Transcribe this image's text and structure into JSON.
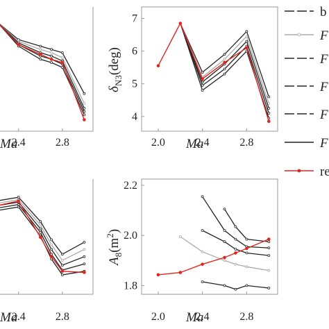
{
  "chart_data": [
    {
      "type": "line",
      "panel": "top-left",
      "xlabel": "Ma",
      "x_ticks": [
        "2.4",
        "2.8"
      ],
      "x": [
        2.0,
        2.2,
        2.4,
        2.6,
        2.7,
        2.8,
        3.0
      ],
      "series": [
        {
          "name": "b",
          "values": [
            null,
            6.9,
            6.35,
            6.15,
            6.05,
            5.95,
            4.7
          ]
        },
        {
          "name": "F",
          "values": [
            null,
            6.9,
            6.3,
            6.05,
            5.95,
            5.8,
            4.4
          ]
        },
        {
          "name": "F",
          "values": [
            null,
            6.9,
            6.25,
            5.95,
            5.85,
            5.7,
            4.25
          ]
        },
        {
          "name": "F",
          "values": [
            null,
            6.9,
            6.2,
            5.85,
            5.75,
            5.6,
            4.15
          ]
        },
        {
          "name": "F",
          "values": [
            null,
            6.9,
            6.15,
            5.75,
            5.65,
            5.5,
            4.05
          ]
        },
        {
          "name": "re",
          "values": [
            null,
            6.9,
            6.2,
            5.9,
            5.75,
            5.65,
            3.9
          ]
        }
      ]
    },
    {
      "type": "line",
      "panel": "top-right",
      "xlabel": "Ma",
      "ylabel_main": "δ",
      "ylabel_sub": "N3",
      "ylabel_rest": "(deg)",
      "x_ticks": [
        "2.0",
        "2.4",
        "2.8"
      ],
      "y_ticks": [
        "4",
        "5",
        "6",
        "7"
      ],
      "xlim": [
        1.85,
        3.08
      ],
      "ylim": [
        3.55,
        7.35
      ],
      "x": [
        2.0,
        2.2,
        2.4,
        2.6,
        2.8,
        3.0
      ],
      "series": [
        {
          "name": "b",
          "values": [
            null,
            6.85,
            5.35,
            5.9,
            6.6,
            4.6
          ]
        },
        {
          "name": "F",
          "values": [
            null,
            6.85,
            5.2,
            5.75,
            6.45,
            4.4
          ]
        },
        {
          "name": "F",
          "values": [
            null,
            6.85,
            5.05,
            5.6,
            6.3,
            4.25
          ]
        },
        {
          "name": "F",
          "values": [
            null,
            6.85,
            4.95,
            5.45,
            6.15,
            4.1
          ]
        },
        {
          "name": "F",
          "values": [
            null,
            6.85,
            4.8,
            5.3,
            6.0,
            3.95
          ]
        },
        {
          "name": "re",
          "values": [
            5.55,
            6.85,
            5.15,
            5.65,
            6.1,
            3.85
          ]
        }
      ]
    },
    {
      "type": "line",
      "panel": "bottom-left",
      "xlabel": "Ma",
      "x_ticks": [
        "2.4",
        "2.8"
      ],
      "x": [
        2.0,
        2.2,
        2.4,
        2.6,
        2.7,
        2.8,
        3.0
      ],
      "series": [
        {
          "name": "b",
          "values": [
            null,
            0.92,
            0.95,
            0.75,
            0.6,
            0.48,
            0.58
          ]
        },
        {
          "name": "F",
          "values": [
            null,
            0.9,
            0.93,
            0.72,
            0.56,
            0.43,
            0.52
          ]
        },
        {
          "name": "F",
          "values": [
            null,
            0.88,
            0.91,
            0.69,
            0.52,
            0.39,
            0.46
          ]
        },
        {
          "name": "F",
          "values": [
            null,
            0.86,
            0.89,
            0.66,
            0.48,
            0.35,
            0.4
          ]
        },
        {
          "name": "F",
          "values": [
            null,
            0.84,
            0.87,
            0.63,
            0.44,
            0.31,
            0.34
          ]
        },
        {
          "name": "re",
          "values": [
            null,
            0.88,
            0.92,
            0.62,
            0.46,
            0.34,
            0.33
          ]
        }
      ]
    },
    {
      "type": "line",
      "panel": "bottom-right",
      "xlabel": "Ma",
      "ylabel_main": "A",
      "ylabel_sub": "8",
      "ylabel_rest": "(m",
      "ylabel_sup": "2",
      "ylabel_close": ")",
      "x_ticks": [
        "2.0",
        "2.4",
        "2.8"
      ],
      "y_ticks": [
        "1.8",
        "2.0",
        "2.2"
      ],
      "xlim": [
        1.85,
        3.08
      ],
      "ylim": [
        1.765,
        2.225
      ],
      "x": [
        2.0,
        2.2,
        2.4,
        2.6,
        2.7,
        2.8,
        3.0
      ],
      "series": [
        {
          "name": "b",
          "values": [
            null,
            null,
            2.155,
            2.02,
            1.985,
            1.955,
            1.95
          ]
        },
        {
          "name": "F",
          "values": [
            null,
            1.995,
            1.935,
            1.9,
            1.885,
            1.875,
            1.86
          ]
        },
        {
          "name": "F",
          "values": [
            null,
            null,
            2.02,
            1.975,
            1.945,
            1.93,
            1.92
          ]
        },
        {
          "name": "F",
          "values": [
            null,
            null,
            1.815,
            1.8,
            1.785,
            1.8,
            1.79
          ]
        },
        {
          "name": "F",
          "values": [
            null,
            null,
            null,
            2.105,
            2.035,
            1.985,
            1.975
          ]
        },
        {
          "name": "re",
          "values": [
            1.843,
            1.852,
            1.885,
            1.912,
            1.93,
            1.948,
            1.985
          ]
        }
      ]
    }
  ],
  "legend": {
    "entries": [
      "b",
      "F",
      "F",
      "F",
      "F",
      "F",
      "re"
    ],
    "styles": [
      "long-dash",
      "light",
      "long-dash",
      "long-dash",
      "long-dash",
      "solid",
      "red"
    ]
  },
  "colors": {
    "main": "#222222",
    "light": "#aaaaaa",
    "red": "#e0251f"
  }
}
